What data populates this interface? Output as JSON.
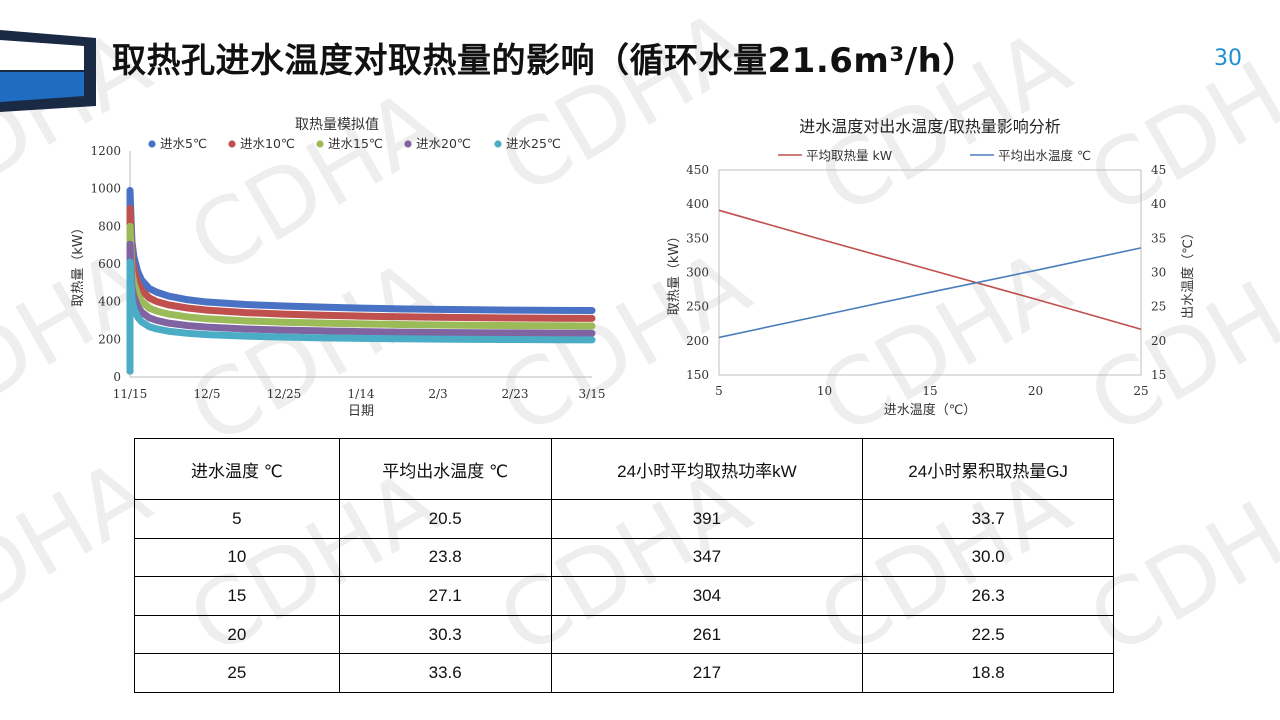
{
  "title": "取热孔进水温度对取热量的影响（循环水量21.6m³/h）",
  "page_number": "30",
  "watermark": "CDHA",
  "colors": {
    "logo_navy": "#1b2a44",
    "logo_blue": "#1f6dc2",
    "page_number": "#1f8fd3"
  },
  "chart_data": [
    {
      "type": "line",
      "title": "取热量模拟值",
      "xlabel": "日期",
      "ylabel": "取热量（kW）",
      "ylim": [
        0,
        1200
      ],
      "yticks": [
        "0",
        "200",
        "400",
        "600",
        "800",
        "1000",
        "1200"
      ],
      "x_categories": [
        "11/15",
        "12/5",
        "12/25",
        "1/14",
        "2/3",
        "2/23",
        "3/15"
      ],
      "legend_position": "top",
      "grid": false,
      "x_days": [
        0,
        0.5,
        1,
        2,
        3,
        5,
        7,
        10,
        15,
        20,
        30,
        40,
        50,
        60,
        70,
        80,
        90,
        100,
        110,
        120
      ],
      "series": [
        {
          "name": "进水5℃",
          "color": "#4a72c4",
          "values": [
            990,
            720,
            640,
            560,
            515,
            470,
            450,
            430,
            410,
            398,
            385,
            377,
            371,
            366,
            362,
            359,
            357,
            355,
            354,
            353
          ]
        },
        {
          "name": "进水10℃",
          "color": "#c0504d",
          "values": [
            895,
            640,
            575,
            500,
            460,
            420,
            400,
            383,
            366,
            355,
            342,
            334,
            328,
            323,
            320,
            317,
            315,
            313,
            312,
            311
          ]
        },
        {
          "name": "进水15℃",
          "color": "#9bbb59",
          "values": [
            800,
            560,
            500,
            437,
            402,
            366,
            350,
            334,
            319,
            309,
            298,
            291,
            286,
            282,
            279,
            276,
            274,
            273,
            272,
            271
          ]
        },
        {
          "name": "进水20℃",
          "color": "#8064a2",
          "values": [
            705,
            480,
            430,
            375,
            345,
            314,
            300,
            286,
            273,
            265,
            255,
            249,
            245,
            241,
            238,
            236,
            235,
            234,
            233,
            232
          ]
        },
        {
          "name": "进水25℃",
          "color": "#4bacc6",
          "values": [
            610,
            410,
            365,
            318,
            293,
            267,
            255,
            243,
            232,
            225,
            217,
            212,
            208,
            205,
            203,
            201,
            200,
            199,
            198,
            197
          ]
        }
      ]
    },
    {
      "type": "line",
      "title": "进水温度对出水温度/取热量影响分析",
      "xlabel": "进水温度（℃）",
      "ylabel": "取热量（kW）",
      "y2label": "出水温度（℃）",
      "x": [
        5,
        10,
        15,
        20,
        25
      ],
      "xticks": [
        "5",
        "10",
        "15",
        "20",
        "25"
      ],
      "ylim": [
        150,
        450
      ],
      "yticks": [
        "150",
        "200",
        "250",
        "300",
        "350",
        "400",
        "450"
      ],
      "y2lim": [
        15,
        45
      ],
      "y2ticks": [
        "15",
        "20",
        "25",
        "30",
        "35",
        "40",
        "45"
      ],
      "legend_position": "top",
      "grid": false,
      "series": [
        {
          "name": "平均取热量 kW",
          "axis": "left",
          "color": "#c0504d",
          "values": [
            391,
            347,
            304,
            261,
            217
          ]
        },
        {
          "name": "平均出水温度 ℃",
          "axis": "right",
          "color": "#4a7ebb",
          "values": [
            20.5,
            23.8,
            27.1,
            30.3,
            33.6
          ]
        }
      ]
    }
  ],
  "table": {
    "headers": [
      "进水温度 ℃",
      "平均出水温度 ℃",
      "24小时平均取热功率kW",
      "24小时累积取热量GJ"
    ],
    "rows": [
      [
        "5",
        "20.5",
        "391",
        "33.7"
      ],
      [
        "10",
        "23.8",
        "347",
        "30.0"
      ],
      [
        "15",
        "27.1",
        "304",
        "26.3"
      ],
      [
        "20",
        "30.3",
        "261",
        "22.5"
      ],
      [
        "25",
        "33.6",
        "217",
        "18.8"
      ]
    ]
  }
}
